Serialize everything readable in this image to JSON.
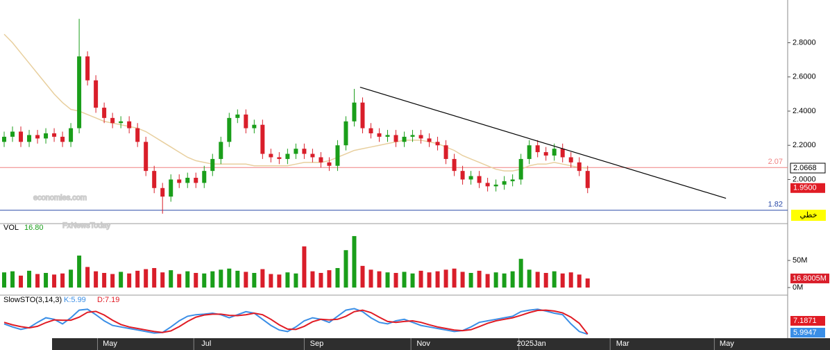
{
  "chart_data": {
    "type": "candlestick",
    "xlim": [
      -0.5,
      94
    ],
    "xticks": [
      {
        "value": 12.7,
        "label": "May"
      },
      {
        "value": 24.25,
        "label": "Jul"
      },
      {
        "value": 37.5,
        "label": "Sep"
      },
      {
        "value": 50.3,
        "label": "Nov"
      },
      {
        "value": 63.25,
        "label": "2025Jan"
      },
      {
        "value": 74.2,
        "label": "Mar"
      },
      {
        "value": 86.7,
        "label": "May"
      }
    ],
    "ylim": [
      1.75,
      3.05
    ],
    "yticks": [
      {
        "value": 2,
        "label": "2.0000"
      },
      {
        "value": 2.2,
        "label": "2.2000"
      },
      {
        "value": 2.4,
        "label": "2.4000"
      },
      {
        "value": 2.6,
        "label": "2.6000"
      },
      {
        "value": 2.8,
        "label": "2.8000"
      }
    ],
    "up_color": "#1a9e1a",
    "down_color": "#d91e2a",
    "open": [
      2.22,
      2.25,
      2.28,
      2.22,
      2.26,
      2.24,
      2.27,
      2.25,
      2.22,
      2.3,
      2.72,
      2.58,
      2.42,
      2.36,
      2.33,
      2.34,
      2.3,
      2.22,
      2.05,
      1.95,
      1.9,
      2.0,
      1.98,
      2.01,
      1.98,
      2.05,
      2.12,
      2.22,
      2.36,
      2.38,
      2.3,
      2.32,
      2.15,
      2.13,
      2.12,
      2.15,
      2.18,
      2.15,
      2.13,
      2.1,
      2.08,
      2.2,
      2.34,
      2.45,
      2.3,
      2.27,
      2.25,
      2.26,
      2.22,
      2.25,
      2.26,
      2.24,
      2.22,
      2.2,
      2.12,
      2.05,
      2.0,
      2.02,
      1.98,
      1.96,
      1.97,
      1.99,
      2.0,
      2.12,
      2.2,
      2.16,
      2.14,
      2.18,
      2.13,
      2.1,
      2.05
    ],
    "high": [
      2.28,
      2.31,
      2.31,
      2.29,
      2.29,
      2.3,
      2.3,
      2.28,
      2.33,
      2.94,
      2.75,
      2.61,
      2.45,
      2.39,
      2.37,
      2.37,
      2.33,
      2.25,
      2.08,
      1.98,
      2.03,
      2.03,
      2.04,
      2.04,
      2.08,
      2.15,
      2.25,
      2.39,
      2.41,
      2.41,
      2.35,
      2.35,
      2.18,
      2.16,
      2.18,
      2.21,
      2.21,
      2.18,
      2.16,
      2.13,
      2.23,
      2.37,
      2.53,
      2.48,
      2.33,
      2.3,
      2.29,
      2.29,
      2.28,
      2.29,
      2.29,
      2.27,
      2.25,
      2.23,
      2.15,
      2.08,
      2.05,
      2.05,
      2.01,
      2.0,
      2.02,
      2.03,
      2.15,
      2.23,
      2.23,
      2.19,
      2.21,
      2.21,
      2.16,
      2.13,
      2.08
    ],
    "low": [
      2.19,
      2.22,
      2.19,
      2.19,
      2.21,
      2.21,
      2.22,
      2.19,
      2.19,
      2.27,
      2.55,
      2.39,
      2.33,
      2.3,
      2.3,
      2.27,
      2.19,
      2.02,
      1.92,
      1.8,
      1.87,
      1.95,
      1.95,
      1.95,
      1.95,
      2.02,
      2.09,
      2.19,
      2.33,
      2.27,
      2.27,
      2.12,
      2.1,
      2.09,
      2.09,
      2.12,
      2.12,
      2.1,
      2.07,
      2.05,
      2.05,
      2.17,
      2.31,
      2.27,
      2.24,
      2.22,
      2.22,
      2.19,
      2.19,
      2.22,
      2.21,
      2.19,
      2.17,
      2.09,
      2.02,
      1.97,
      1.97,
      1.95,
      1.93,
      1.93,
      1.94,
      1.96,
      1.97,
      2.09,
      2.13,
      2.11,
      2.11,
      2.1,
      2.07,
      2.02,
      1.92
    ],
    "close": [
      2.25,
      2.28,
      2.22,
      2.26,
      2.24,
      2.27,
      2.25,
      2.22,
      2.3,
      2.72,
      2.58,
      2.42,
      2.36,
      2.33,
      2.34,
      2.3,
      2.22,
      2.05,
      1.95,
      1.9,
      2.0,
      1.98,
      2.01,
      1.98,
      2.05,
      2.12,
      2.22,
      2.36,
      2.38,
      2.3,
      2.32,
      2.15,
      2.13,
      2.12,
      2.15,
      2.18,
      2.15,
      2.13,
      2.1,
      2.08,
      2.2,
      2.34,
      2.45,
      2.3,
      2.27,
      2.25,
      2.26,
      2.22,
      2.25,
      2.26,
      2.24,
      2.22,
      2.2,
      2.12,
      2.05,
      2.0,
      2.02,
      1.98,
      1.96,
      1.97,
      1.99,
      2.0,
      2.12,
      2.2,
      2.16,
      2.14,
      2.18,
      2.13,
      2.1,
      2.05,
      1.95
    ],
    "ma": {
      "color": "#e8cf9e",
      "values": [
        2.85,
        2.8,
        2.74,
        2.68,
        2.62,
        2.56,
        2.5,
        2.45,
        2.41,
        2.4,
        2.38,
        2.36,
        2.34,
        2.33,
        2.32,
        2.31,
        2.3,
        2.28,
        2.25,
        2.22,
        2.19,
        2.16,
        2.13,
        2.11,
        2.1,
        2.09,
        2.09,
        2.09,
        2.09,
        2.09,
        2.08,
        2.08,
        2.08,
        2.08,
        2.08,
        2.09,
        2.1,
        2.1,
        2.1,
        2.11,
        2.13,
        2.15,
        2.17,
        2.18,
        2.19,
        2.2,
        2.21,
        2.22,
        2.23,
        2.23,
        2.23,
        2.22,
        2.21,
        2.19,
        2.17,
        2.14,
        2.12,
        2.1,
        2.08,
        2.06,
        2.05,
        2.05,
        2.06,
        2.08,
        2.09,
        2.09,
        2.1,
        2.09,
        2.08,
        2.07,
        2.0668
      ]
    },
    "hlines": [
      {
        "value": 2.07,
        "color": "#f08080"
      },
      {
        "value": 1.82,
        "color": "#2a4aa8"
      }
    ],
    "trendline": {
      "x": [
        42.7,
        86.6
      ],
      "y": [
        2.54,
        1.89
      ],
      "color": "#000000"
    },
    "tags": [
      {
        "value": 1.95,
        "label": "1.9500",
        "color": "#e01b24"
      }
    ],
    "scale_label": "خطي",
    "watermarks": [
      "economies.com",
      "FxNewsToday"
    ],
    "volume": {
      "title": "VOL",
      "legend_value": "16.80",
      "values": [
        28,
        30,
        22,
        31,
        25,
        27,
        24,
        26,
        33,
        59,
        38,
        30,
        27,
        25,
        29,
        26,
        31,
        34,
        36,
        28,
        32,
        25,
        30,
        27,
        26,
        30,
        33,
        35,
        31,
        29,
        27,
        34,
        25,
        24,
        28,
        26,
        76,
        30,
        27,
        32,
        36,
        69,
        95,
        40,
        33,
        30,
        28,
        27,
        29,
        26,
        31,
        28,
        30,
        33,
        35,
        29,
        27,
        31,
        25,
        28,
        26,
        30,
        53,
        33,
        29,
        27,
        30,
        26,
        28,
        24,
        16.8005
      ],
      "last_label": "16.8005M",
      "ylim": [
        -14,
        118
      ],
      "yticks": [
        {
          "value": 50,
          "label": "50M"
        },
        {
          "value": 0,
          "label": "0M"
        }
      ]
    },
    "stochastic": {
      "title": "SlowSTO(3,14,3)",
      "ylim": [
        0,
        100
      ],
      "series": [
        {
          "legend": "K:5.99",
          "color": "#3a8ee6",
          "values": [
            40,
            30,
            22,
            28,
            45,
            60,
            55,
            40,
            60,
            85,
            88,
            70,
            50,
            35,
            30,
            25,
            20,
            15,
            10,
            12,
            30,
            50,
            65,
            70,
            72,
            75,
            70,
            60,
            70,
            80,
            75,
            55,
            35,
            20,
            15,
            30,
            50,
            60,
            55,
            45,
            65,
            85,
            90,
            80,
            60,
            45,
            40,
            50,
            55,
            45,
            35,
            30,
            25,
            20,
            15,
            18,
            30,
            45,
            50,
            55,
            60,
            65,
            80,
            85,
            88,
            82,
            75,
            70,
            40,
            15,
            5.9947
          ]
        },
        {
          "legend": "D:7.19",
          "color": "#e01b24",
          "values": [
            45,
            37,
            31,
            27,
            32,
            44,
            53,
            52,
            52,
            62,
            78,
            81,
            69,
            52,
            38,
            30,
            25,
            20,
            15,
            12,
            17,
            31,
            48,
            62,
            69,
            72,
            72,
            68,
            67,
            70,
            75,
            70,
            55,
            37,
            23,
            22,
            32,
            47,
            55,
            53,
            55,
            65,
            80,
            85,
            77,
            62,
            48,
            45,
            48,
            50,
            45,
            37,
            30,
            25,
            20,
            18,
            21,
            31,
            42,
            50,
            55,
            60,
            68,
            77,
            84,
            85,
            82,
            76,
            62,
            42,
            7.1871
          ]
        }
      ]
    }
  }
}
